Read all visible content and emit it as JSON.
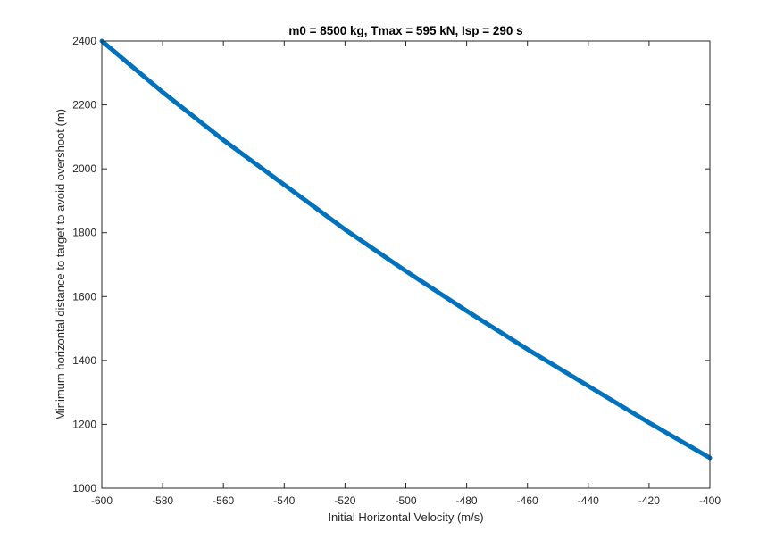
{
  "chart_data": {
    "type": "line",
    "title": "m0 = 8500 kg, Tmax = 595 kN, Isp = 290 s",
    "xlabel": "Initial Horizontal Velocity (m/s)",
    "ylabel": "Minimum horizontal distance to target to avoid overshoot (m)",
    "xlim": [
      -600,
      -400
    ],
    "ylim": [
      1000,
      2400
    ],
    "xticks": [
      -600,
      -580,
      -560,
      -540,
      -520,
      -500,
      -480,
      -460,
      -440,
      -420,
      -400
    ],
    "yticks": [
      1000,
      1200,
      1400,
      1600,
      1800,
      2000,
      2200,
      2400
    ],
    "grid": false,
    "series": [
      {
        "color": "#0072BD",
        "x": [
          -600,
          -580,
          -560,
          -540,
          -520,
          -500,
          -480,
          -460,
          -440,
          -420,
          -400
        ],
        "y": [
          2400,
          2240,
          2090,
          1950,
          1810,
          1680,
          1555,
          1435,
          1320,
          1205,
          1095
        ]
      }
    ]
  }
}
